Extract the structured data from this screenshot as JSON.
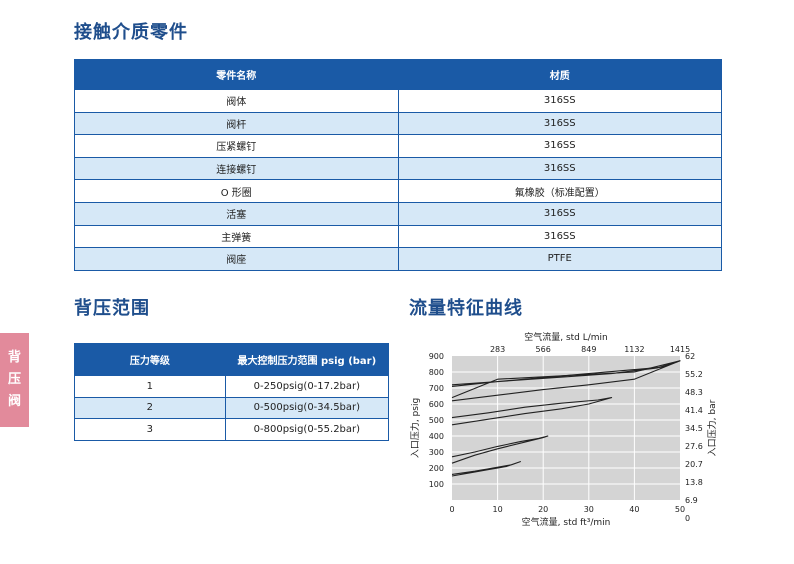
{
  "section1": {
    "title": "接触介质零件",
    "headers": [
      "零件名称",
      "材质"
    ],
    "rows": [
      [
        "阀体",
        "316SS"
      ],
      [
        "阀杆",
        "316SS"
      ],
      [
        "压紧螺钉",
        "316SS"
      ],
      [
        "连接螺钉",
        "316SS"
      ],
      [
        "O 形圈",
        "氟橡胶（标准配置）"
      ],
      [
        "活塞",
        "316SS"
      ],
      [
        "主弹簧",
        "316SS"
      ],
      [
        "阀座",
        "PTFE"
      ]
    ]
  },
  "section2": {
    "title": "背压范围",
    "headers": [
      "压力等级",
      "最大控制压力范围 psig (bar)"
    ],
    "rows": [
      [
        "1",
        "0-250psig(0-17.2bar)"
      ],
      [
        "2",
        "0-500psig(0-34.5bar)"
      ],
      [
        "3",
        "0-800psig(0-55.2bar)"
      ]
    ]
  },
  "section3": {
    "title": "流量特征曲线"
  },
  "side_tab": {
    "chars": [
      "背",
      "压",
      "阀"
    ],
    "color": "#e28a9b"
  },
  "colors": {
    "heading": "#1f4e8c",
    "table_header": "#1a5aa6",
    "row_alt": "#d6e8f7",
    "plot_bg": "#d4d4d4"
  },
  "chart_data": {
    "type": "line",
    "title": "",
    "xlabel": "空气流量, std ft³/min",
    "ylabel": "入口压力, psig",
    "x2label": "空气流量, std L/min",
    "y2label": "入口压力, bar",
    "xlim": [
      0,
      50
    ],
    "ylim": [
      0,
      900
    ],
    "x_ticks": [
      "0",
      "10",
      "20",
      "30",
      "40",
      "50"
    ],
    "y_ticks": [
      "100",
      "200",
      "300",
      "400",
      "500",
      "600",
      "700",
      "800",
      "900"
    ],
    "x_ticks_top": [
      "283",
      "566",
      "849",
      "1132",
      "1415"
    ],
    "y_ticks_right": [
      "62",
      "55.2",
      "48.3",
      "41.4",
      "34.5",
      "27.6",
      "20.7",
      "13.8",
      "6.9",
      "0"
    ],
    "grid": true,
    "series": [
      {
        "values": [
          [
            0,
            710
          ],
          [
            10,
            740
          ],
          [
            20,
            765
          ],
          [
            30,
            790
          ],
          [
            40,
            815
          ],
          [
            46,
            830
          ],
          [
            50,
            870
          ],
          [
            45,
            825
          ],
          [
            35,
            790
          ],
          [
            25,
            770
          ],
          [
            15,
            750
          ],
          [
            5,
            730
          ],
          [
            0,
            720
          ]
        ]
      },
      {
        "values": [
          [
            0,
            620
          ],
          [
            10,
            655
          ],
          [
            20,
            690
          ],
          [
            30,
            720
          ],
          [
            40,
            755
          ],
          [
            50,
            870
          ],
          [
            40,
            800
          ],
          [
            30,
            785
          ],
          [
            20,
            770
          ],
          [
            10,
            755
          ],
          [
            0,
            640
          ]
        ]
      },
      {
        "values": [
          [
            0,
            470
          ],
          [
            8,
            505
          ],
          [
            16,
            540
          ],
          [
            24,
            570
          ],
          [
            30,
            600
          ],
          [
            35,
            640
          ],
          [
            32,
            625
          ],
          [
            24,
            605
          ],
          [
            16,
            580
          ],
          [
            8,
            545
          ],
          [
            0,
            515
          ]
        ]
      },
      {
        "values": [
          [
            0,
            230
          ],
          [
            5,
            280
          ],
          [
            10,
            320
          ],
          [
            15,
            355
          ],
          [
            20,
            390
          ],
          [
            21,
            400
          ],
          [
            19,
            385
          ],
          [
            15,
            365
          ],
          [
            10,
            335
          ],
          [
            5,
            300
          ],
          [
            0,
            270
          ]
        ]
      },
      {
        "values": [
          [
            0,
            150
          ],
          [
            4,
            170
          ],
          [
            8,
            190
          ],
          [
            12,
            210
          ],
          [
            15,
            240
          ],
          [
            13,
            220
          ],
          [
            9,
            200
          ],
          [
            5,
            180
          ],
          [
            0,
            160
          ]
        ]
      }
    ]
  }
}
